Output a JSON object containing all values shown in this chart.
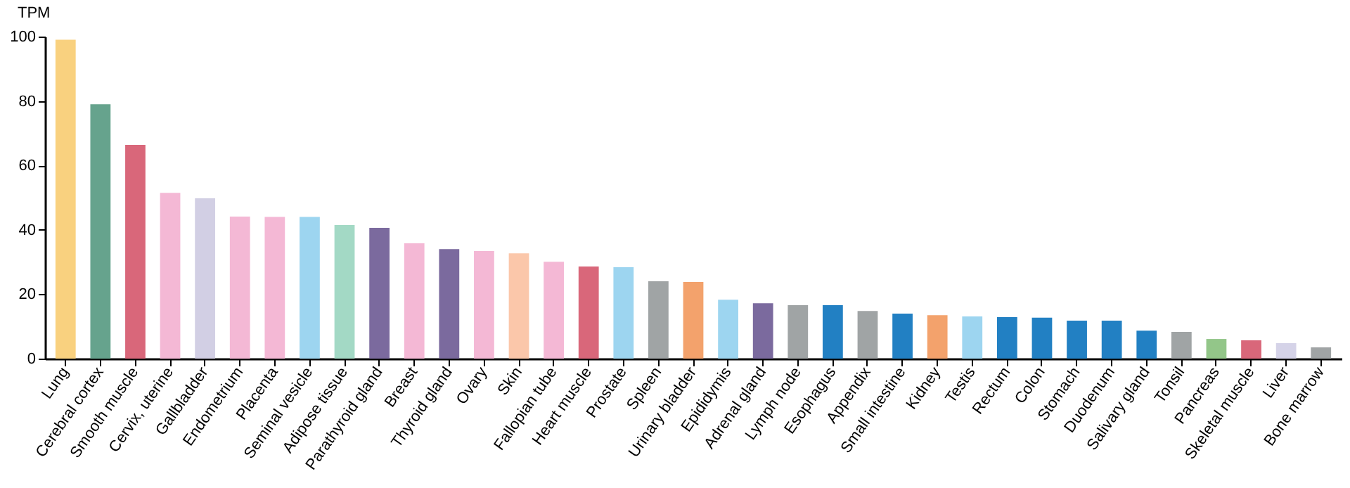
{
  "chart_data": {
    "type": "bar",
    "ylabel": "TPM",
    "categories": [
      "Lung",
      "Cerebral cortex",
      "Smooth muscle",
      "Cervix, uterine",
      "Gallbladder",
      "Endometrium",
      "Placenta",
      "Seminal vesicle",
      "Adipose tissue",
      "Parathyroid gland",
      "Breast",
      "Thyroid gland",
      "Ovary",
      "Skin",
      "Fallopian tube",
      "Heart muscle",
      "Prostate",
      "Spleen",
      "Urinary bladder",
      "Epididymis",
      "Adrenal gland",
      "Lymph node",
      "Esophagus",
      "Appendix",
      "Small intestine",
      "Kidney",
      "Testis",
      "Rectum",
      "Colon",
      "Stomach",
      "Duodenum",
      "Salivary gland",
      "Tonsil",
      "Pancreas",
      "Skeletal muscle",
      "Liver",
      "Bone marrow"
    ],
    "values": [
      99,
      79,
      66.4,
      51.5,
      49.8,
      44.1,
      44,
      44,
      41.5,
      40.6,
      35.8,
      34,
      33.4,
      32.7,
      30.1,
      28.6,
      28.4,
      24,
      23.8,
      18.3,
      17.2,
      16.6,
      16.6,
      14.8,
      14,
      13.5,
      13.1,
      12.9,
      12.7,
      11.8,
      11.8,
      8.7,
      8.3,
      6.1,
      5.7,
      4.8,
      3.5
    ],
    "colors": [
      "#f9d17f",
      "#66a38d",
      "#d9677a",
      "#f4b8d5",
      "#d2cfe4",
      "#f4b8d5",
      "#f4b8d5",
      "#9dd5f0",
      "#a3d9c5",
      "#7b6a9e",
      "#f4b8d5",
      "#7b6a9e",
      "#f4b8d5",
      "#fbc7aa",
      "#f4b8d5",
      "#d9677a",
      "#9dd5f0",
      "#a0a4a5",
      "#f3a26c",
      "#9dd5f0",
      "#7b6a9e",
      "#a0a4a5",
      "#2280c3",
      "#a0a4a5",
      "#2280c3",
      "#f3a26c",
      "#9dd5f0",
      "#2280c3",
      "#2280c3",
      "#2280c3",
      "#2280c3",
      "#2280c3",
      "#a0a4a5",
      "#93c689",
      "#d9677a",
      "#d5d3e8",
      "#a0a4a5"
    ],
    "ylim": [
      0,
      100
    ],
    "yticks": [
      0,
      20,
      40,
      60,
      80,
      100
    ],
    "grid": false,
    "legend": false
  }
}
